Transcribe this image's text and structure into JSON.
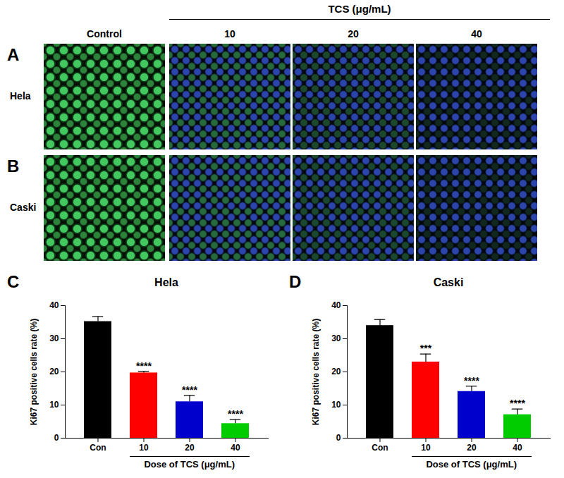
{
  "figure": {
    "header": "TCS (μg/mL)",
    "columns": [
      "Control",
      "10",
      "20",
      "40"
    ],
    "rows": [
      {
        "panel": "A",
        "label": "Hela"
      },
      {
        "panel": "B",
        "label": "Caski"
      }
    ]
  },
  "chart_data": [
    {
      "type": "bar",
      "panel": "C",
      "title": "Hela",
      "y_label": "Ki67 positive cells rate (%)",
      "x_label": "Dose of TCS (μg/mL)",
      "categories": [
        "Con",
        "10",
        "20",
        "40"
      ],
      "values": [
        35.2,
        19.7,
        11.0,
        4.4
      ],
      "errors": [
        1.5,
        0.5,
        1.9,
        1.2
      ],
      "annotations": [
        null,
        "****",
        "****",
        "****"
      ],
      "colors": [
        "#000000",
        "#ff0000",
        "#0000cc",
        "#00cc00"
      ],
      "ylim": [
        0,
        40
      ],
      "yticks": [
        0,
        10,
        20,
        30,
        40
      ],
      "grid": false
    },
    {
      "type": "bar",
      "panel": "D",
      "title": "Caski",
      "y_label": "Ki67 positive cells rate (%)",
      "x_label": "Dose of TCS (μg/mL)",
      "categories": [
        "Con",
        "10",
        "20",
        "40"
      ],
      "values": [
        34.0,
        23.0,
        14.1,
        7.1
      ],
      "errors": [
        1.8,
        2.4,
        1.6,
        1.7
      ],
      "annotations": [
        null,
        "***",
        "****",
        "****"
      ],
      "colors": [
        "#000000",
        "#ff0000",
        "#0000cc",
        "#00cc00"
      ],
      "ylim": [
        0,
        40
      ],
      "yticks": [
        0,
        10,
        20,
        30,
        40
      ],
      "grid": false
    }
  ]
}
